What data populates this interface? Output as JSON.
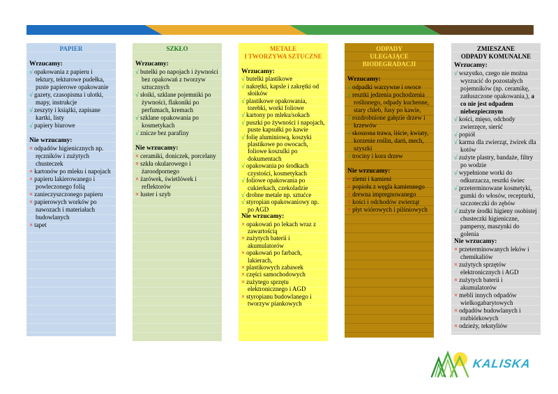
{
  "labels": {
    "include": "Wrzucamy:",
    "exclude": "Nie wrzucamy:"
  },
  "markers": {
    "check": "√",
    "cross": "×"
  },
  "colors": {
    "bar": [
      "#1D6EC0",
      "#EAAC2F",
      "#48A24C",
      "#5F4120"
    ],
    "check": "#00A651",
    "cross": "#E53935"
  },
  "columns": [
    {
      "title": "PAPIER",
      "bg": "#C5D8ED",
      "title_color": "#2E74B5",
      "gap_before_exclude": true,
      "include": [
        "opakowania z papieru i tektury, tekturowe pudełka, puste papierowe opakowanie",
        "gazety, czasopisma i ulotki, mapy, instrukcje",
        "zeszyty i książki, zapisane kartki, listy",
        "papiery biurowe"
      ],
      "exclude": [
        "odpadów higienicznych np. ręczników i zużytych chusteczek",
        "kartonów po mleku i napojach",
        "papieru lakierowanego i powleczonego folią",
        "zanieczyszczonego papieru",
        "papierowych worków po nawozach i materiałach budowlanych",
        "tapet"
      ]
    },
    {
      "title": "SZKŁO",
      "bg": "#D7E4BC",
      "title_color": "#1E7B1E",
      "gap_before_exclude": true,
      "include": [
        "butelki po napojach i żywności bez opakowań z tworzyw sztucznych",
        "słoiki, szklane pojemniki po żywności, flakoniki po perfumach, kremach",
        "szklane opakowania po kosmetykach",
        "znicze bez parafiny"
      ],
      "exclude": [
        "ceramiki, doniczek, porcelany",
        "szkła okularowego i żaroodpornego",
        "żarówek, świetlówek i reflektorów",
        "luster i szyb"
      ]
    },
    {
      "title": "METALE\nI TWORZYWA SZTUCZNE",
      "bg": "#FFFF66",
      "title_color": "#E36C0A",
      "gap_before_exclude": false,
      "include": [
        "butelki plastikowe",
        "nakrętki, kapsle i zakrętki od słoików",
        "plastikowe opakowania, torebki, worki foliowe",
        "kartony po mleku/sokach",
        "puszki po żywności i napojach, puste kapsułki po kawie",
        "folię aluminiową, koszyki plastikowe po owocach, foliowe koszulki po dokumentach",
        "opakowania po środkach czystości, kosmetykach",
        "foliowe opakowania po cukierkach, czekoladzie",
        "drobne metale np. sztućce",
        "styropian opakowaniowy np. po AGD"
      ],
      "exclude": [
        "opakowań po lekach wraz z zawartością",
        "zużytych baterii i akumulatorów",
        "opakowań po farbach, lakierach,",
        "plastikowych zabawek",
        "części samochodowych",
        "zużytego sprzętu elektronicznego i AGD",
        "styropianu budowlanego i tworzyw piankowych"
      ]
    },
    {
      "title": "ODPADY\nULEGAJĄCE\nBIODEGRADACJI",
      "bg": "#B8860B",
      "title_color": "#FFE14D",
      "gap_before_exclude": true,
      "include": [
        "odpadki warzywne i owoce",
        "resztki jedzenia pochodzenia roślinnego, odpady kuchenne, stary chleb, fusy po kawie,",
        "rozdrobnione gałęzie drzew i krzewów",
        "skoszona trawa, liście, kwiaty, korzenie roślin, darń, mech, szyszki",
        "trociny i kora drzew"
      ],
      "exclude": [
        "ziemi i kamieni",
        "popiołu z węgla kamiennego",
        "drewna impregnowanego",
        "kości i odchodów zwierząt",
        "płyt wiórowych i pilśniowych"
      ]
    },
    {
      "title": "ZMIESZANE\nODPADY KOMUNALNE",
      "bg": "#D9D9D9",
      "title_color": "#000000",
      "gap_before_exclude": false,
      "include": [
        {
          "text": "wszystko, czego nie można wyrzucić do pozostałych pojemników (np. ceramikę, zatłuszczone opakowania,), ",
          "bold": "a co nie jest odpadem niebezpiecznym"
        },
        "kości, mięso, odchody zwierzęce, sierść",
        "popiół",
        "karma dla zwierząt, żwirek dla kotów",
        "zużyte plastry, bandaże, filtry po wodzie",
        "wypełnione worki do odkurzacza, resztki świec",
        "przeterminowane kosmetyki, gumki do włosów, recepturki, szczoteczki do zębów",
        "zużyte środki higieny osobistej chusteczki higieniczne, pampersy, maszynki do golenia"
      ],
      "exclude": [
        "przeterminowanych leków i chemikaliów",
        "zużytych sprzętów elektronicznych i AGD",
        "zużytych baterii i akumulatorów",
        "mebli innych odpadów wielkogabarytowych",
        "odpadów budowlanych i rozbiórkowych",
        "odzieży, tekstyliów"
      ]
    }
  ],
  "logo": {
    "text": "KALISKA",
    "text_color": "#2AA9CE",
    "sun_color": "#FFE03A",
    "tree_colors": [
      "#2E8B2E",
      "#49B13F",
      "#7DC243"
    ]
  }
}
